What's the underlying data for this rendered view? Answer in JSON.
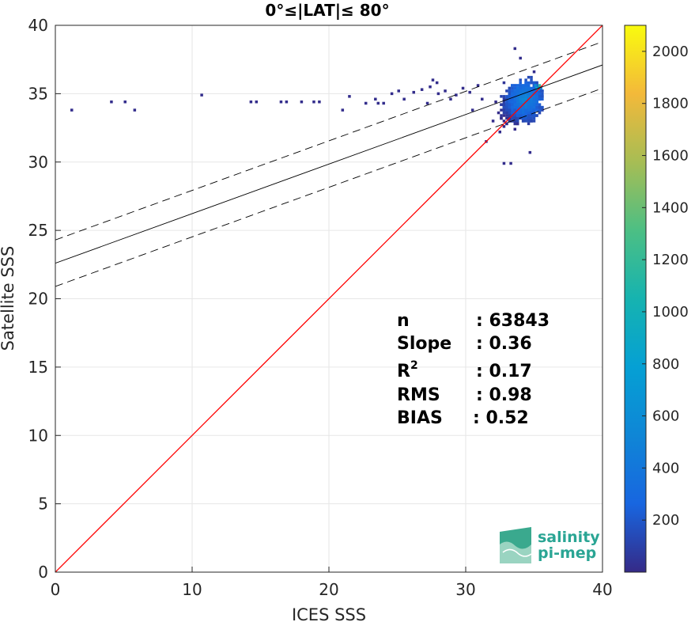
{
  "chart_data": {
    "type": "heatmap",
    "title": "0°≤|LAT|≤ 80°",
    "xlabel": "ICES SSS",
    "ylabel": "Satellite SSS",
    "xlim": [
      0,
      40
    ],
    "ylim": [
      0,
      40
    ],
    "xticks": [
      "0",
      "10",
      "20",
      "30",
      "40"
    ],
    "yticks": [
      "0",
      "5",
      "10",
      "15",
      "20",
      "25",
      "30",
      "35",
      "40"
    ],
    "grid": true,
    "colorbar": {
      "ticks": [
        "200",
        "400",
        "600",
        "800",
        "1000",
        "1200",
        "1400",
        "1600",
        "1800",
        "2000"
      ],
      "range": [
        0,
        2100
      ],
      "colormap": "parula"
    },
    "lines": [
      {
        "role": "one-to-one",
        "color": "#ff0000",
        "style": "solid",
        "x": [
          0,
          40
        ],
        "y": [
          0,
          40
        ]
      },
      {
        "role": "regression",
        "color": "#000000",
        "style": "solid",
        "x": [
          0,
          40
        ],
        "y": [
          22.6,
          37.1
        ]
      },
      {
        "role": "regression-upper",
        "color": "#000000",
        "style": "dashed",
        "x": [
          0,
          40
        ],
        "y": [
          24.3,
          38.8
        ]
      },
      {
        "role": "regression-lower",
        "color": "#000000",
        "style": "dashed",
        "x": [
          0,
          40
        ],
        "y": [
          20.9,
          35.4
        ]
      }
    ],
    "density_points": [
      {
        "x": 1.2,
        "y": 33.8,
        "count": 15
      },
      {
        "x": 4.1,
        "y": 34.4,
        "count": 15
      },
      {
        "x": 5.1,
        "y": 34.4,
        "count": 15
      },
      {
        "x": 5.8,
        "y": 33.8,
        "count": 15
      },
      {
        "x": 10.7,
        "y": 34.9,
        "count": 15
      },
      {
        "x": 14.3,
        "y": 34.4,
        "count": 15
      },
      {
        "x": 14.7,
        "y": 34.4,
        "count": 15
      },
      {
        "x": 16.5,
        "y": 34.4,
        "count": 15
      },
      {
        "x": 16.9,
        "y": 34.4,
        "count": 15
      },
      {
        "x": 18.0,
        "y": 34.4,
        "count": 15
      },
      {
        "x": 18.9,
        "y": 34.4,
        "count": 15
      },
      {
        "x": 19.3,
        "y": 34.4,
        "count": 15
      },
      {
        "x": 21.0,
        "y": 33.8,
        "count": 15
      },
      {
        "x": 21.5,
        "y": 34.8,
        "count": 15
      },
      {
        "x": 22.7,
        "y": 34.3,
        "count": 15
      },
      {
        "x": 23.4,
        "y": 34.6,
        "count": 15
      },
      {
        "x": 23.6,
        "y": 34.3,
        "count": 15
      },
      {
        "x": 24.0,
        "y": 34.3,
        "count": 15
      },
      {
        "x": 24.6,
        "y": 35.0,
        "count": 15
      },
      {
        "x": 25.1,
        "y": 35.2,
        "count": 15
      },
      {
        "x": 25.5,
        "y": 34.6,
        "count": 15
      },
      {
        "x": 26.2,
        "y": 35.1,
        "count": 15
      },
      {
        "x": 26.8,
        "y": 35.3,
        "count": 15
      },
      {
        "x": 27.2,
        "y": 34.3,
        "count": 15
      },
      {
        "x": 27.4,
        "y": 35.5,
        "count": 15
      },
      {
        "x": 27.6,
        "y": 36.0,
        "count": 15
      },
      {
        "x": 27.9,
        "y": 35.8,
        "count": 15
      },
      {
        "x": 28.0,
        "y": 35.0,
        "count": 15
      },
      {
        "x": 28.5,
        "y": 35.2,
        "count": 15
      },
      {
        "x": 28.9,
        "y": 34.6,
        "count": 15
      },
      {
        "x": 29.3,
        "y": 34.9,
        "count": 15
      },
      {
        "x": 29.8,
        "y": 35.4,
        "count": 15
      },
      {
        "x": 30.3,
        "y": 35.1,
        "count": 15
      },
      {
        "x": 30.5,
        "y": 33.8,
        "count": 15
      },
      {
        "x": 30.9,
        "y": 35.6,
        "count": 15
      },
      {
        "x": 31.2,
        "y": 34.6,
        "count": 15
      },
      {
        "x": 31.5,
        "y": 31.5,
        "count": 15
      },
      {
        "x": 32.0,
        "y": 33.0,
        "count": 15
      },
      {
        "x": 32.5,
        "y": 32.2,
        "count": 15
      },
      {
        "x": 32.8,
        "y": 29.9,
        "count": 15
      },
      {
        "x": 33.3,
        "y": 29.9,
        "count": 15
      },
      {
        "x": 33.6,
        "y": 38.3,
        "count": 15
      },
      {
        "x": 34.0,
        "y": 37.6,
        "count": 15
      },
      {
        "x": 34.7,
        "y": 30.7,
        "count": 15
      },
      {
        "x": 35.0,
        "y": 36.6,
        "count": 15
      }
    ]
  },
  "stats": {
    "n_label": "n",
    "n_value": ": 63843",
    "slope_label": "Slope",
    "slope_value": ": 0.36",
    "r2_label": "R",
    "r2_sup": "2",
    "r2_value": ": 0.17",
    "rms_label": "RMS",
    "rms_value": ": 0.98",
    "bias_label": "BIAS",
    "bias_value": ": 0.52"
  },
  "logo": {
    "line1": "salinity",
    "line2": "pi-mep"
  },
  "colors": {
    "one_to_one": "#ff0000",
    "regression": "#000000",
    "grid": "#e6e6e6"
  }
}
